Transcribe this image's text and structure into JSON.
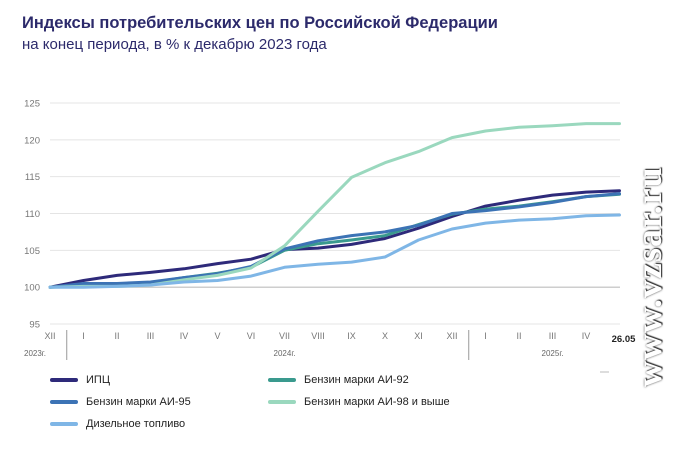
{
  "header": {
    "title": "Индексы потребительских цен по Российской Федерации",
    "subtitle": "на конец периода, в % к декабрю 2023 года"
  },
  "watermark": "www.vzsar.ru",
  "chart_data": {
    "type": "line",
    "title": "Индексы потребительских цен по Российской Федерации",
    "subtitle": "на конец периода, в % к декабрю 2023 года",
    "x": [
      "XII",
      "I",
      "II",
      "III",
      "IV",
      "V",
      "VI",
      "VII",
      "VIII",
      "IX",
      "X",
      "XI",
      "XII",
      "I",
      "II",
      "III",
      "IV",
      "26.05"
    ],
    "year_labels": [
      {
        "label": "2023г.",
        "index": 0
      },
      {
        "label": "2024г.",
        "index": 7
      },
      {
        "label": "2025г.",
        "index": 15
      }
    ],
    "ylim": [
      95,
      125
    ],
    "yticks": [
      95,
      100,
      105,
      110,
      115,
      120,
      125
    ],
    "grid": true,
    "legend_position": "bottom",
    "series": [
      {
        "name": "ИПЦ",
        "color": "#2e2a7a",
        "values": [
          100.0,
          100.9,
          101.6,
          102.0,
          102.5,
          103.2,
          103.8,
          105.1,
          105.3,
          105.8,
          106.6,
          108.0,
          109.6,
          111.0,
          111.8,
          112.5,
          112.9,
          113.1
        ]
      },
      {
        "name": "Бензин марки АИ-92",
        "color": "#3a9a8e",
        "values": [
          100.0,
          100.2,
          100.3,
          100.6,
          101.3,
          101.9,
          102.7,
          105.0,
          105.9,
          106.4,
          107.0,
          108.5,
          109.9,
          110.6,
          111.0,
          111.6,
          112.3,
          112.6
        ]
      },
      {
        "name": "Бензин марки АИ-95",
        "color": "#3c73b5",
        "values": [
          100.0,
          100.5,
          100.5,
          100.7,
          101.3,
          101.8,
          102.8,
          105.2,
          106.3,
          107.0,
          107.5,
          108.4,
          110.0,
          110.4,
          110.9,
          111.5,
          112.3,
          112.7
        ]
      },
      {
        "name": "Бензин марки АИ-98 и выше",
        "color": "#9ad8be",
        "values": [
          100.0,
          100.1,
          100.1,
          100.3,
          101.0,
          101.6,
          102.6,
          105.6,
          110.3,
          114.9,
          116.9,
          118.4,
          120.3,
          121.2,
          121.7,
          121.9,
          122.2,
          122.2
        ]
      },
      {
        "name": "Дизельное топливо",
        "color": "#7fb6e6",
        "values": [
          100.0,
          100.0,
          100.1,
          100.3,
          100.7,
          100.9,
          101.5,
          102.7,
          103.1,
          103.4,
          104.1,
          106.4,
          107.9,
          108.7,
          109.1,
          109.3,
          109.7,
          109.8
        ]
      }
    ]
  }
}
